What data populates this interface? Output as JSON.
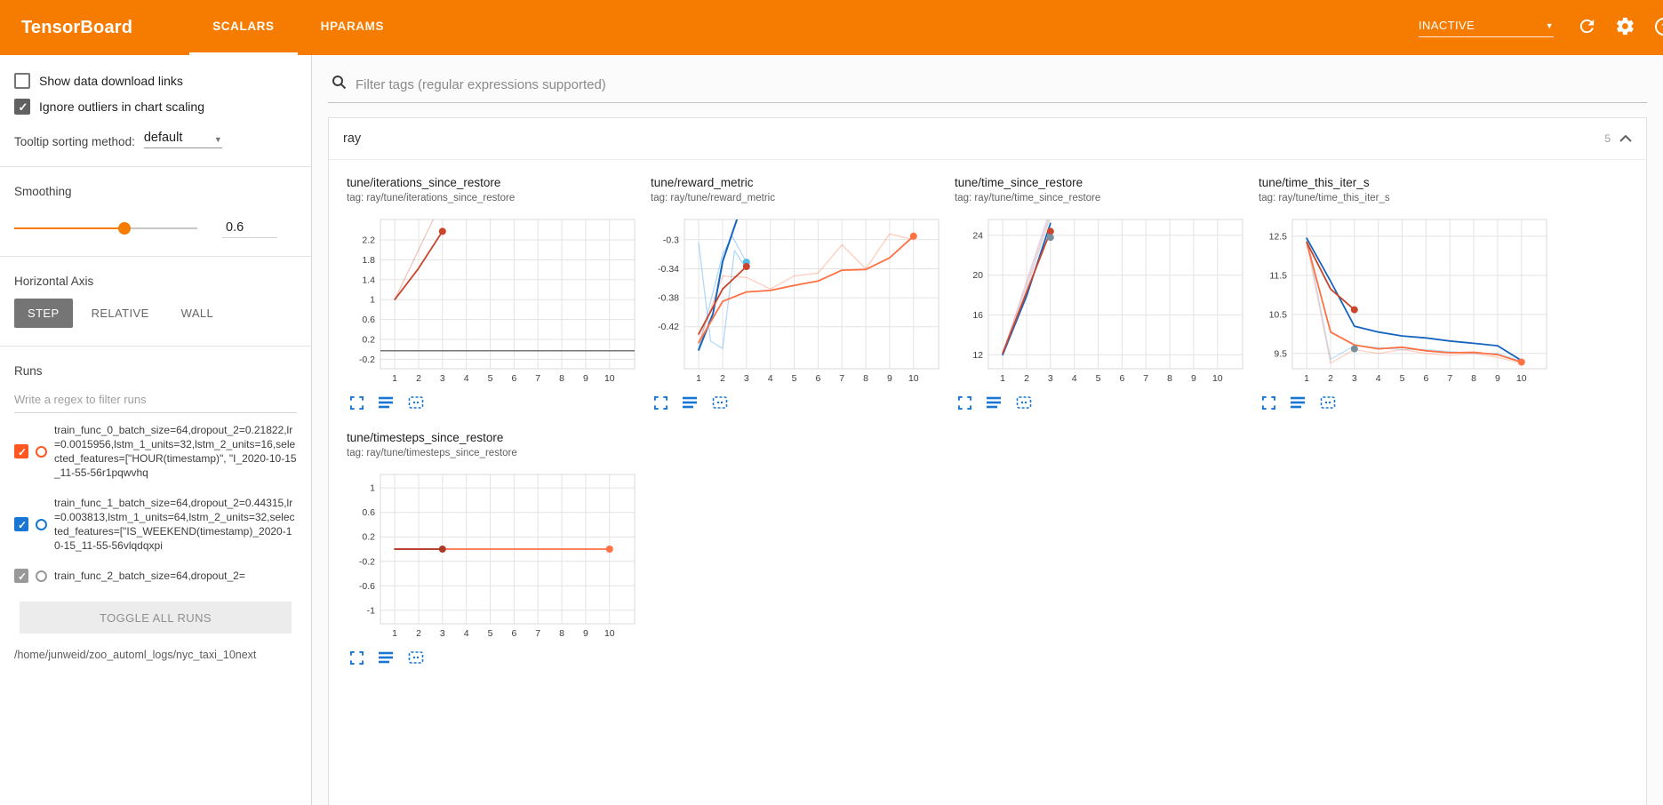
{
  "colors": {
    "accent": "#f57c00",
    "run_orange": "#ff5722",
    "run_blue": "#1976d2",
    "icon_blue": "#1976d2"
  },
  "header": {
    "title": "TensorBoard",
    "tabs": [
      {
        "label": "SCALARS",
        "active": true
      },
      {
        "label": "HPARAMS",
        "active": false
      }
    ],
    "status": "INACTIVE"
  },
  "sidebar": {
    "checkboxes": [
      {
        "label": "Show data download links",
        "checked": false
      },
      {
        "label": "Ignore outliers in chart scaling",
        "checked": true
      }
    ],
    "tooltip_sort": {
      "label": "Tooltip sorting method:",
      "value": "default"
    },
    "smoothing": {
      "label": "Smoothing",
      "value": "0.6",
      "percent": 60
    },
    "horizontal_axis": {
      "label": "Horizontal Axis",
      "options": [
        "STEP",
        "RELATIVE",
        "WALL"
      ],
      "selected": "STEP"
    },
    "runs": {
      "label": "Runs",
      "filter_placeholder": "Write a regex to filter runs",
      "items": [
        {
          "name": "train_func_0_batch_size=64,dropout_2=0.21822,lr=0.0015956,lstm_1_units=32,lstm_2_units=16,selected_features=[\"HOUR(timestamp)\", \"I_2020-10-15_11-55-56r1pqwvhq",
          "checked": true,
          "color": "#ff5722"
        },
        {
          "name": "train_func_1_batch_size=64,dropout_2=0.44315,lr=0.003813,lstm_1_units=64,lstm_2_units=32,selected_features=[\"IS_WEEKEND(timestamp)_2020-10-15_11-55-56vlqdqxpi",
          "checked": true,
          "color": "#1976d2"
        },
        {
          "name": "train_func_2_batch_size=64,dropout_2=",
          "checked": true,
          "color": "#999999"
        }
      ],
      "toggle_all_label": "TOGGLE ALL RUNS",
      "path": "/home/junweid/zoo_automl_logs/nyc_taxi_10next"
    }
  },
  "main": {
    "filter_placeholder": "Filter tags (regular expressions supported)",
    "category": {
      "name": "ray",
      "count": "5"
    }
  },
  "chart_data": [
    {
      "type": "line",
      "title": "tune/iterations_since_restore",
      "tag": "tag: ray/tune/iterations_since_restore",
      "xlim": [
        0.4,
        11.05
      ],
      "ylim": [
        -0.39,
        2.61
      ],
      "xticks": [
        1,
        2,
        3,
        4,
        5,
        6,
        7,
        8,
        9,
        10
      ],
      "yticks": [
        -0.2,
        0.2,
        0.6,
        1,
        1.4,
        1.8,
        2.2
      ],
      "series": [
        {
          "color": "#c9462c",
          "opacity": 0.3,
          "width": 1.3,
          "points": [
            [
              1,
              1
            ],
            [
              2,
              2
            ],
            [
              3,
              3
            ]
          ]
        },
        {
          "color": "#757575",
          "opacity": 1,
          "width": 1.5,
          "points": [
            [
              0.4,
              -0.03
            ],
            [
              11.05,
              -0.03
            ]
          ]
        },
        {
          "color": "#c9462c",
          "opacity": 1,
          "width": 1.8,
          "points": [
            [
              1,
              1
            ],
            [
              2,
              1.63
            ],
            [
              3,
              2.37
            ]
          ],
          "end_dot": true
        }
      ]
    },
    {
      "type": "line",
      "title": "tune/reward_metric",
      "tag": "tag: ray/tune/reward_metric",
      "xlim": [
        0.4,
        11.05
      ],
      "ylim": [
        -0.478,
        -0.272
      ],
      "xticks": [
        1,
        2,
        3,
        4,
        5,
        6,
        7,
        8,
        9,
        10
      ],
      "yticks": [
        -0.42,
        -0.38,
        -0.34,
        -0.3
      ],
      "series": [
        {
          "color": "#64b5f6",
          "opacity": 0.5,
          "width": 1.3,
          "points": [
            [
              1,
              -0.305
            ],
            [
              1.5,
              -0.44
            ],
            [
              2,
              -0.45
            ],
            [
              2.5,
              -0.315
            ],
            [
              3,
              -0.34
            ]
          ]
        },
        {
          "color": "#64b5f6",
          "opacity": 0.5,
          "width": 1.3,
          "points": [
            [
              1,
              -0.45
            ],
            [
              2,
              -0.32
            ],
            [
              2.4,
              -0.295
            ],
            [
              3,
              -0.331
            ]
          ],
          "end_dot": true,
          "dot_color": "#56b9e4"
        },
        {
          "color": "#ff7043",
          "opacity": 0.35,
          "width": 1.3,
          "points": [
            [
              1,
              -0.442
            ],
            [
              2,
              -0.35
            ],
            [
              3,
              -0.352
            ],
            [
              4,
              -0.368
            ],
            [
              5,
              -0.35
            ],
            [
              6,
              -0.346
            ],
            [
              7,
              -0.307
            ],
            [
              8,
              -0.34
            ],
            [
              9,
              -0.292
            ],
            [
              10,
              -0.3
            ]
          ]
        },
        {
          "color": "#1565c0",
          "opacity": 1,
          "width": 2,
          "points": [
            [
              1,
              -0.452
            ],
            [
              1.6,
              -0.402
            ],
            [
              2,
              -0.33
            ],
            [
              2.6,
              -0.272
            ]
          ]
        },
        {
          "color": "#ff7043",
          "opacity": 1,
          "width": 1.8,
          "points": [
            [
              1,
              -0.442
            ],
            [
              2,
              -0.385
            ],
            [
              3,
              -0.372
            ],
            [
              4,
              -0.37
            ],
            [
              5,
              -0.363
            ],
            [
              6,
              -0.357
            ],
            [
              7,
              -0.342
            ],
            [
              8,
              -0.341
            ],
            [
              9,
              -0.325
            ],
            [
              10,
              -0.295
            ]
          ],
          "end_dot": true
        },
        {
          "color": "#c9462c",
          "opacity": 1,
          "width": 1.8,
          "points": [
            [
              1,
              -0.43
            ],
            [
              2,
              -0.368
            ],
            [
              3,
              -0.337
            ]
          ],
          "end_dot": true
        }
      ]
    },
    {
      "type": "line",
      "title": "tune/time_since_restore",
      "tag": "tag: ray/tune/time_since_restore",
      "xlim": [
        0.4,
        11.05
      ],
      "ylim": [
        10.6,
        25.6
      ],
      "xticks": [
        1,
        2,
        3,
        4,
        5,
        6,
        7,
        8,
        9,
        10
      ],
      "yticks": [
        12,
        16,
        20,
        24
      ],
      "series": [
        {
          "color": "#b39ddb",
          "opacity": 0.45,
          "width": 1.3,
          "points": [
            [
              1,
              12.1
            ],
            [
              2,
              19.4
            ],
            [
              3,
              26.6
            ]
          ]
        },
        {
          "color": "#ef9a9a",
          "opacity": 0.45,
          "width": 1.3,
          "points": [
            [
              1,
              12.2
            ],
            [
              2,
              19.0
            ],
            [
              3,
              26.2
            ]
          ]
        },
        {
          "color": "#bdbdbd",
          "opacity": 0.5,
          "width": 1.3,
          "points": [
            [
              1,
              12.0
            ],
            [
              2,
              18.6
            ],
            [
              3,
              25.9
            ]
          ]
        },
        {
          "color": "#1565c0",
          "opacity": 1,
          "width": 1.8,
          "points": [
            [
              1,
              12.0
            ],
            [
              2,
              17.9
            ],
            [
              3,
              25.2
            ]
          ]
        },
        {
          "color": "#c9462c",
          "opacity": 1,
          "width": 1.8,
          "points": [
            [
              1,
              12.15
            ],
            [
              2,
              18.3
            ],
            [
              3,
              24.4
            ]
          ],
          "end_dot": true
        },
        {
          "color": "#78909c",
          "opacity": 1,
          "width": 1.8,
          "points": [
            [
              3,
              23.8
            ]
          ],
          "end_dot": true
        }
      ]
    },
    {
      "type": "line",
      "title": "tune/time_this_iter_s",
      "tag": "tag: ray/tune/time_this_iter_s",
      "xlim": [
        0.4,
        11.05
      ],
      "ylim": [
        9.11,
        12.93
      ],
      "xticks": [
        1,
        2,
        3,
        4,
        5,
        6,
        7,
        8,
        9,
        10
      ],
      "yticks": [
        9.5,
        10.5,
        11.5,
        12.5
      ],
      "series": [
        {
          "color": "#64b5f6",
          "opacity": 0.4,
          "width": 1.3,
          "points": [
            [
              1,
              12.45
            ],
            [
              2,
              9.35
            ],
            [
              3,
              9.7
            ],
            [
              4,
              9.65
            ],
            [
              5,
              9.6
            ],
            [
              6,
              9.6
            ],
            [
              7,
              9.55
            ],
            [
              8,
              9.5
            ],
            [
              9,
              9.5
            ],
            [
              10,
              9.3
            ]
          ]
        },
        {
          "color": "#ff7043",
          "opacity": 0.3,
          "width": 1.3,
          "points": [
            [
              1,
              12.35
            ],
            [
              2,
              9.25
            ],
            [
              3,
              9.6
            ],
            [
              4,
              9.5
            ],
            [
              5,
              9.6
            ],
            [
              6,
              9.5
            ],
            [
              7,
              9.45
            ],
            [
              8,
              9.5
            ],
            [
              9,
              9.4
            ],
            [
              10,
              9.25
            ]
          ]
        },
        {
          "color": "#1565c0",
          "opacity": 1,
          "width": 1.8,
          "points": [
            [
              1,
              12.45
            ],
            [
              2,
              11.35
            ],
            [
              3,
              10.2
            ],
            [
              4,
              10.05
            ],
            [
              5,
              9.95
            ],
            [
              6,
              9.9
            ],
            [
              7,
              9.82
            ],
            [
              8,
              9.76
            ],
            [
              9,
              9.7
            ],
            [
              10,
              9.32
            ]
          ]
        },
        {
          "color": "#ff7043",
          "opacity": 1,
          "width": 1.8,
          "points": [
            [
              1,
              12.35
            ],
            [
              2,
              10.05
            ],
            [
              3,
              9.72
            ],
            [
              4,
              9.62
            ],
            [
              5,
              9.66
            ],
            [
              6,
              9.57
            ],
            [
              7,
              9.52
            ],
            [
              8,
              9.53
            ],
            [
              9,
              9.47
            ],
            [
              10,
              9.28
            ]
          ],
          "end_dot": true
        },
        {
          "color": "#c9462c",
          "opacity": 1,
          "width": 1.8,
          "points": [
            [
              1,
              12.35
            ],
            [
              2,
              11.15
            ],
            [
              3,
              10.62
            ]
          ],
          "end_dot": true
        },
        {
          "color": "#78909c",
          "opacity": 1,
          "width": 1.8,
          "points": [
            [
              3,
              9.62
            ]
          ],
          "end_dot": true
        }
      ]
    },
    {
      "type": "line",
      "title": "tune/timesteps_since_restore",
      "tag": "tag: ray/tune/timesteps_since_restore",
      "xlim": [
        0.4,
        11.05
      ],
      "ylim": [
        -1.22,
        1.22
      ],
      "xticks": [
        1,
        2,
        3,
        4,
        5,
        6,
        7,
        8,
        9,
        10
      ],
      "yticks": [
        -1,
        -0.6,
        -0.2,
        0.2,
        0.6,
        1
      ],
      "series": [
        {
          "color": "#ff7043",
          "opacity": 1,
          "width": 1.8,
          "points": [
            [
              1,
              0
            ],
            [
              10,
              0
            ]
          ],
          "end_dot": true
        },
        {
          "color": "#b03826",
          "opacity": 1,
          "width": 1.8,
          "points": [
            [
              1,
              0
            ],
            [
              3,
              0
            ]
          ],
          "end_dot": true
        }
      ]
    }
  ]
}
